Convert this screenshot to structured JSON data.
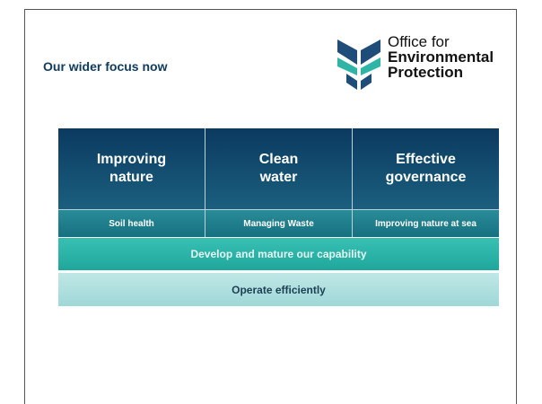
{
  "slide": {
    "title": "Our wider focus now",
    "logo": {
      "lines": [
        "Office for",
        "Environmental",
        "Protection"
      ]
    },
    "columns": [
      {
        "heading": [
          "Improving",
          "nature"
        ],
        "sub": "Soil health"
      },
      {
        "heading": [
          "Clean",
          "water"
        ],
        "sub": "Managing Waste"
      },
      {
        "heading": [
          "Effective",
          "governance"
        ],
        "sub": "Improving nature at sea"
      }
    ],
    "bars": [
      "Develop and mature our capability",
      "Operate efficiently"
    ]
  }
}
